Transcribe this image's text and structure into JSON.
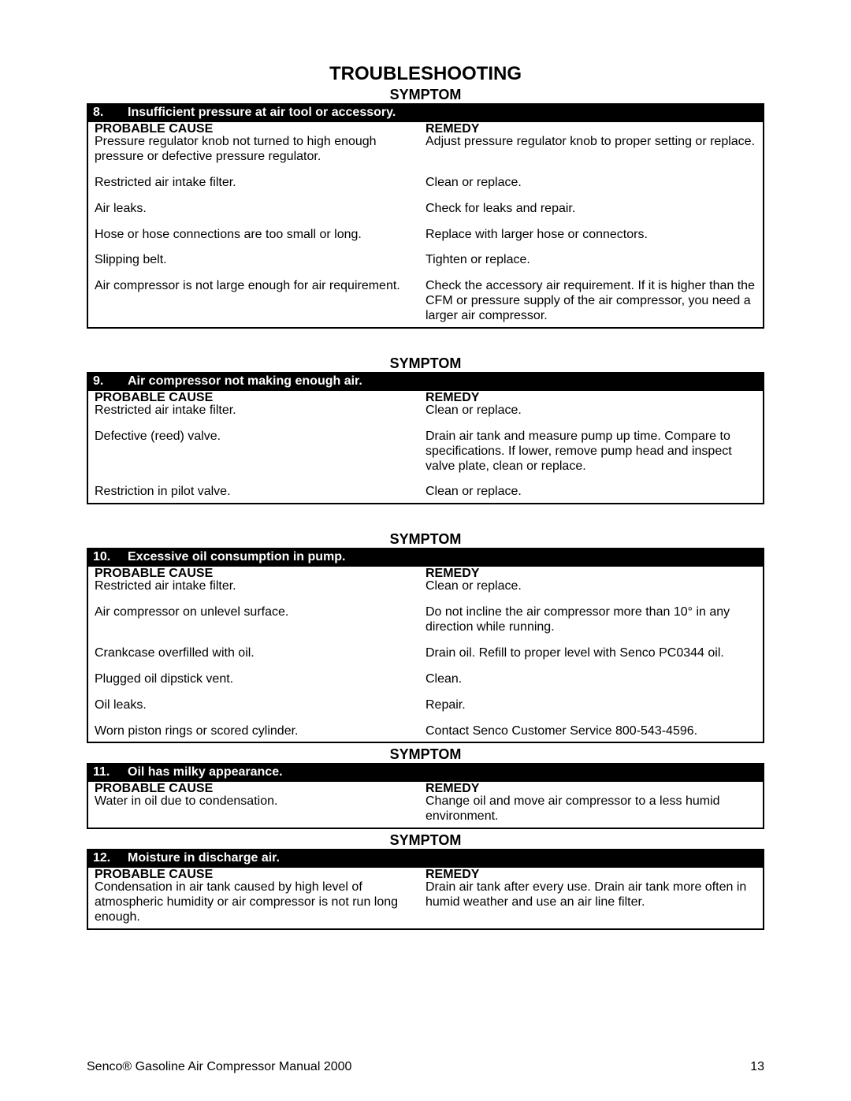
{
  "title": "TROUBLESHOOTING",
  "symptomLabel": "SYMPTOM",
  "causeHeader": "PROBABLE CAUSE",
  "remedyHeader": "REMEDY",
  "sections": [
    {
      "num": "8.",
      "title": "Insufficient pressure at air tool or accessory.",
      "rows": [
        {
          "cause": "Pressure regulator knob not turned to high enough pressure or defective pressure regulator.",
          "remedy": "Adjust pressure regulator knob to proper setting or replace."
        },
        {
          "cause": "Restricted air intake filter.",
          "remedy": "Clean or replace."
        },
        {
          "cause": "Air leaks.",
          "remedy": "Check for leaks and repair."
        },
        {
          "cause": "Hose or hose connections are too small or long.",
          "remedy": "Replace with larger hose or connectors."
        },
        {
          "cause": "Slipping belt.",
          "remedy": "Tighten or replace."
        },
        {
          "cause": "Air compressor is not large enough for air requirement.",
          "remedy": "Check the accessory air requirement. If it is higher than the CFM or pressure supply of the air compressor, you need a larger air compressor."
        }
      ]
    },
    {
      "num": "9.",
      "title": "Air compressor not making enough air.",
      "rows": [
        {
          "cause": "Restricted air intake filter.",
          "remedy": "Clean or replace."
        },
        {
          "cause": "Defective (reed) valve.",
          "remedy": "Drain air tank and measure pump up time.  Compare to specifications.  If lower, remove pump head and inspect valve plate, clean or replace."
        },
        {
          "cause": "Restriction in pilot valve.",
          "remedy": "Clean or replace."
        }
      ]
    },
    {
      "num": "10.",
      "title": "Excessive oil consumption in pump.",
      "rows": [
        {
          "cause": "Restricted air intake filter.",
          "remedy": "Clean or replace."
        },
        {
          "cause": "Air compressor on unlevel surface.",
          "remedy": "Do not incline the air compressor more than 10° in any direction while running."
        },
        {
          "cause": "Crankcase overfilled with oil.",
          "remedy": "Drain oil.  Refill to proper level with Senco PC0344 oil."
        },
        {
          "cause": "Plugged oil dipstick vent.",
          "remedy": "Clean."
        },
        {
          "cause": "Oil leaks.",
          "remedy": "Repair."
        },
        {
          "cause": "Worn piston rings or scored cylinder.",
          "remedy": "Contact Senco Customer Service 800-543-4596."
        }
      ]
    },
    {
      "num": "11.",
      "title": "Oil has milky appearance.",
      "rows": [
        {
          "cause": "Water in oil due to condensation.",
          "remedy": "Change oil and move air compressor to a less humid environment."
        }
      ]
    },
    {
      "num": "12.",
      "title": "Moisture in discharge air.",
      "rows": [
        {
          "cause": "Condensation in air tank caused by high level of atmospheric humidity or air compressor is not run long enough.",
          "remedy": "Drain air tank after every use.  Drain air tank more often in humid weather and use an air line filter."
        }
      ]
    }
  ],
  "footerLeft": "Senco® Gasoline Air Compressor Manual  2000",
  "footerRight": "13"
}
